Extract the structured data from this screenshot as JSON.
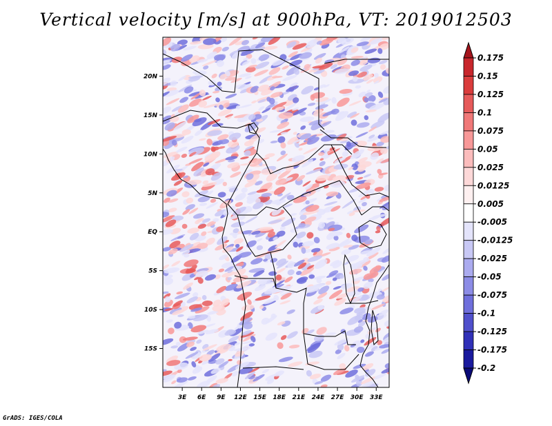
{
  "title": "Vertical velocity [m/s] at 900hPa, VT: 2019012503",
  "credit": "GrADS: IGES/COLA",
  "map": {
    "region": "Central Africa",
    "lon_range": [
      0,
      35
    ],
    "lat_range": [
      -20,
      25
    ],
    "lon_ticks": [
      "3E",
      "6E",
      "9E",
      "12E",
      "15E",
      "18E",
      "21E",
      "24E",
      "27E",
      "30E",
      "33E"
    ],
    "lon_tick_values": [
      3,
      6,
      9,
      12,
      15,
      18,
      21,
      24,
      27,
      30,
      33
    ],
    "lat_ticks": [
      "20N",
      "15N",
      "10N",
      "5N",
      "EQ",
      "5S",
      "10S",
      "15S"
    ],
    "lat_tick_values": [
      20,
      15,
      10,
      5,
      0,
      -5,
      -10,
      -15
    ]
  },
  "colorbar": {
    "labels": [
      "0.175",
      "0.15",
      "0.125",
      "0.1",
      "0.075",
      "0.05",
      "0.025",
      "0.0125",
      "0.005",
      "-0.005",
      "-0.0125",
      "-0.025",
      "-0.05",
      "-0.075",
      "-0.1",
      "-0.125",
      "-0.175",
      "-0.2"
    ],
    "colors": [
      "#a5141c",
      "#c8262c",
      "#da3c3c",
      "#e65a5a",
      "#f07878",
      "#f89898",
      "#fbbcbc",
      "#fdd8d8",
      "#fef0f0",
      "#ffffff",
      "#e4e4fb",
      "#c8c8f5",
      "#ababef",
      "#8c8ce6",
      "#6f6fdc",
      "#5050cc",
      "#3030b8",
      "#1a1a9e",
      "#0a0a78"
    ]
  }
}
